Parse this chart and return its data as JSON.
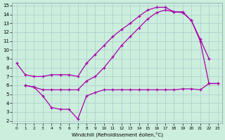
{
  "xlabel": "Windchill (Refroidissement éolien,°C)",
  "bg_color": "#cceedd",
  "grid_color": "#aacccc",
  "line_color": "#aa00aa",
  "xmin": 0,
  "xmax": 23,
  "ymin": 2,
  "ymax": 15,
  "line1_x": [
    0,
    1,
    2,
    3,
    4,
    5,
    6,
    7,
    8,
    9,
    10,
    11,
    12,
    13,
    14,
    15,
    16,
    17,
    18,
    19,
    20,
    21,
    22
  ],
  "line1_y": [
    8.5,
    7.2,
    7.0,
    7.0,
    7.2,
    7.2,
    7.2,
    7.0,
    8.5,
    9.5,
    10.5,
    11.5,
    12.3,
    13.0,
    13.8,
    14.5,
    14.8,
    14.8,
    14.3,
    14.2,
    13.3,
    11.2,
    9.0
  ],
  "line2_x": [
    1,
    2,
    3,
    4,
    5,
    6,
    7,
    8,
    9,
    10,
    11,
    12,
    13,
    14,
    15,
    16,
    17,
    18,
    19,
    20,
    21,
    22,
    23
  ],
  "line2_y": [
    6.0,
    5.8,
    5.5,
    5.5,
    5.5,
    5.5,
    5.5,
    6.5,
    7.0,
    8.0,
    9.2,
    10.5,
    11.5,
    12.5,
    13.5,
    14.2,
    14.5,
    14.3,
    14.3,
    13.3,
    11.0,
    6.2,
    6.2
  ],
  "line3_x": [
    1,
    2,
    3,
    4,
    5,
    6,
    7,
    8,
    9,
    10,
    11,
    12,
    13,
    14,
    15,
    16,
    17,
    18,
    19,
    20,
    21,
    22,
    23
  ],
  "line3_y": [
    6.0,
    5.8,
    4.8,
    3.5,
    3.3,
    3.3,
    2.2,
    4.8,
    5.2,
    5.5,
    5.5,
    5.5,
    5.5,
    5.5,
    5.5,
    5.5,
    5.5,
    5.5,
    5.6,
    5.6,
    5.5,
    6.2,
    6.2
  ]
}
